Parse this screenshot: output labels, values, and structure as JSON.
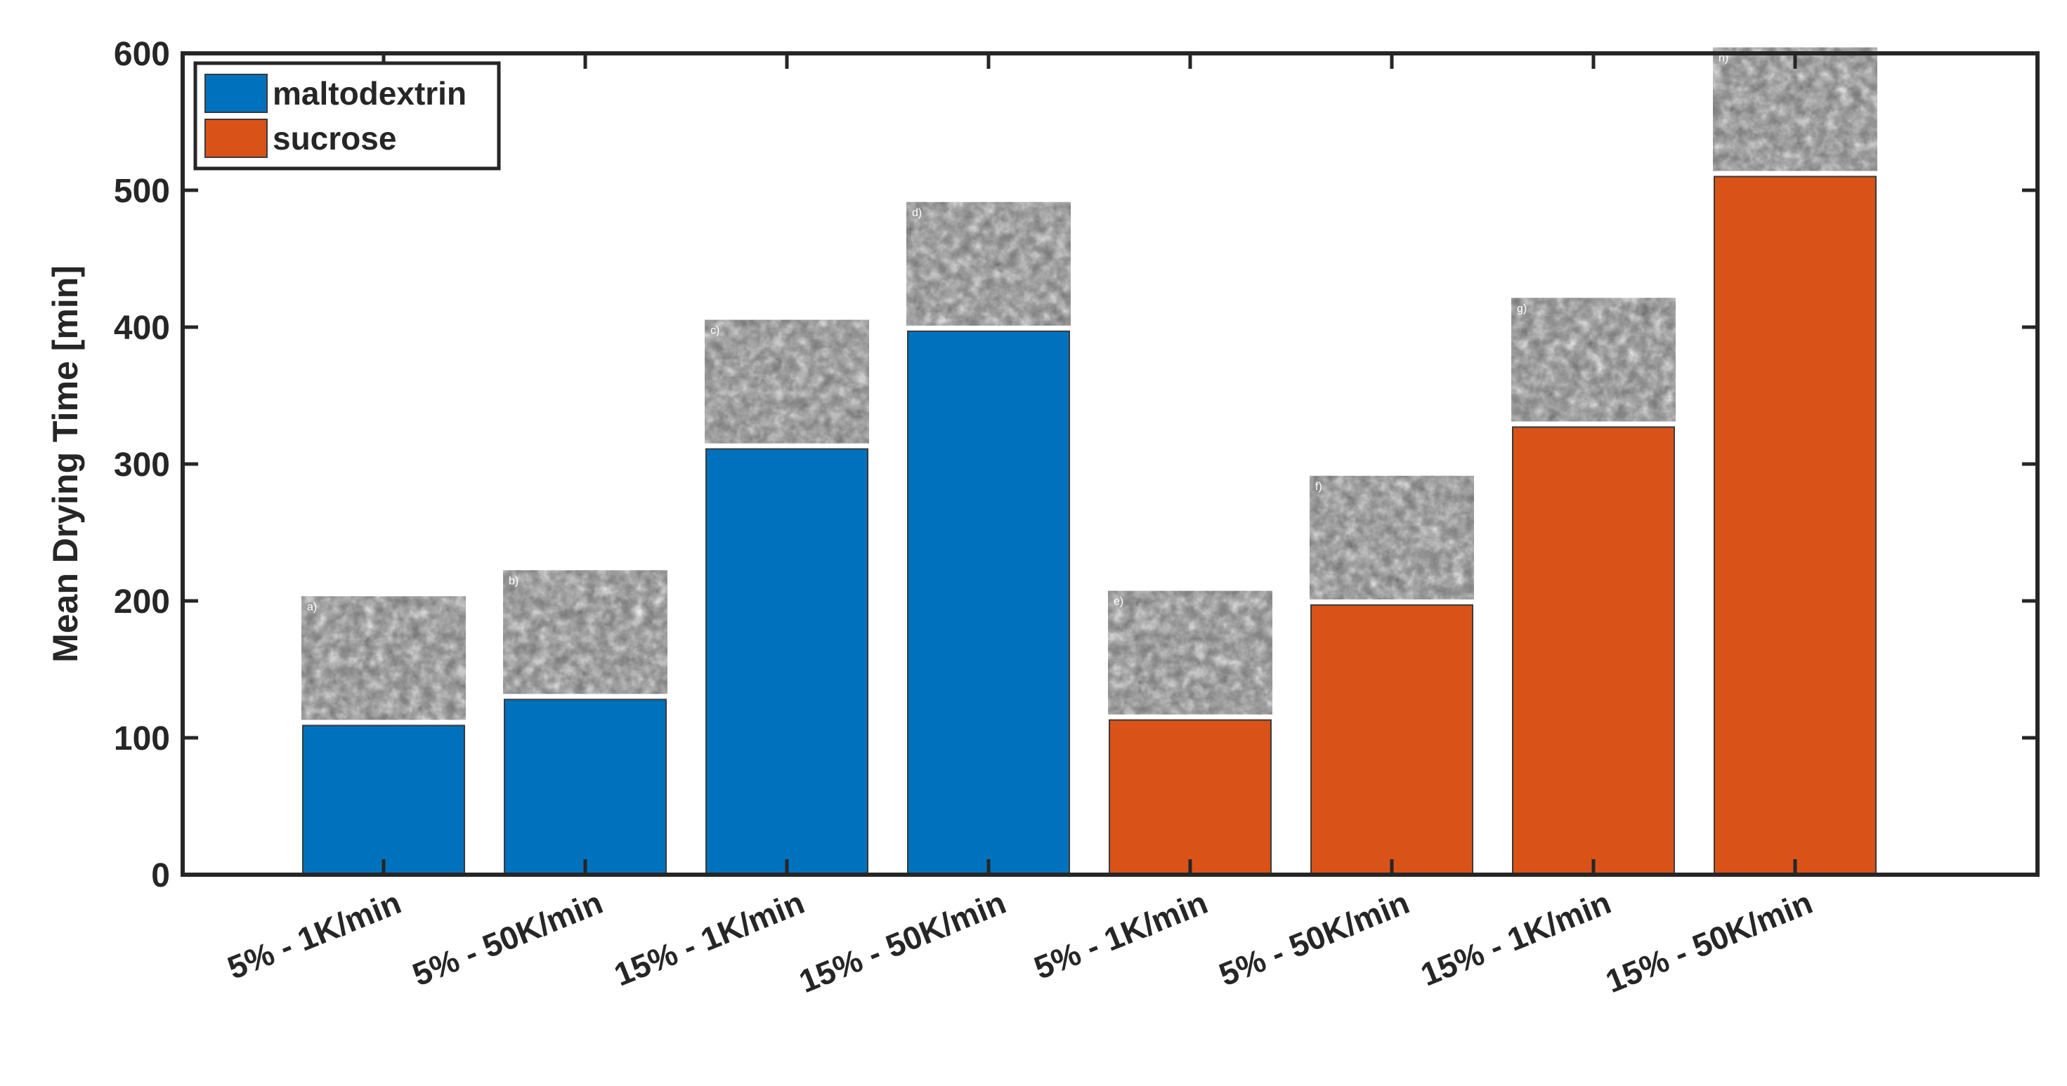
{
  "chart_data": {
    "type": "bar",
    "title": "",
    "xlabel": "",
    "ylabel": "Mean Drying Time [min]",
    "ylim": [
      0,
      600
    ],
    "yticks": [
      0,
      100,
      200,
      300,
      400,
      500,
      600
    ],
    "grid": false,
    "legend_position": "top-left",
    "categories": [
      "5% - 1K/min",
      "5% - 50K/min",
      "15% - 1K/min",
      "15% - 50K/min",
      "5% - 1K/min",
      "5% - 50K/min",
      "15% - 1K/min",
      "15% - 50K/min"
    ],
    "series": [
      {
        "name": "maltodextrin",
        "color": "#0072BD",
        "values": [
          109,
          128,
          311,
          397,
          null,
          null,
          null,
          null
        ]
      },
      {
        "name": "sucrose",
        "color": "#D95319",
        "values": [
          null,
          null,
          null,
          null,
          113,
          197,
          327,
          510
        ]
      }
    ],
    "inset_images": [
      {
        "label": "a)",
        "bar_index": 0
      },
      {
        "label": "b)",
        "bar_index": 1
      },
      {
        "label": "c)",
        "bar_index": 2
      },
      {
        "label": "d)",
        "bar_index": 3
      },
      {
        "label": "e)",
        "bar_index": 4
      },
      {
        "label": "f)",
        "bar_index": 5
      },
      {
        "label": "g)",
        "bar_index": 6
      },
      {
        "label": "h)",
        "bar_index": 7
      }
    ]
  }
}
